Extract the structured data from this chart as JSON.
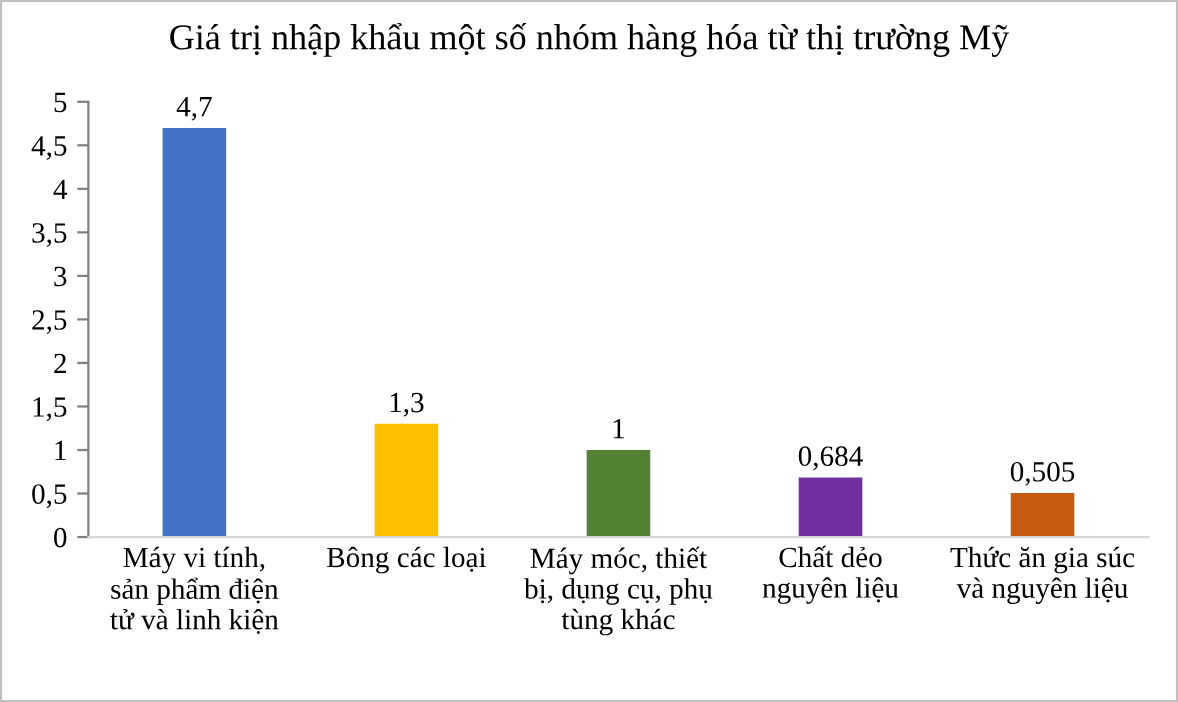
{
  "chart_data": {
    "type": "bar",
    "title": "Giá trị nhập khẩu một số nhóm hàng hóa từ thị trường Mỹ",
    "categories": [
      "Máy vi tính,\nsản phẩm điện\ntử và linh kiện",
      "Bông các loại",
      "Máy móc, thiết\nbị, dụng cụ, phụ\ntùng khác",
      "Chất dẻo\nnguyên liệu",
      "Thức ăn gia súc\nvà nguyên liệu"
    ],
    "values": [
      4.7,
      1.3,
      1,
      0.684,
      0.505
    ],
    "value_labels": [
      "4,7",
      "1,3",
      "1",
      "0,684",
      "0,505"
    ],
    "colors": [
      "#4472c4",
      "#ffc000",
      "#548235",
      "#7030a0",
      "#c55a11"
    ],
    "ylim": [
      0,
      5
    ],
    "yticks": [
      0,
      {
        "value": 0.5,
        "label": "0,5"
      },
      1,
      {
        "value": 1.5,
        "label": "1,5"
      },
      2,
      {
        "value": 2.5,
        "label": "2,5"
      },
      3,
      {
        "value": 3.5,
        "label": "3,5"
      },
      4,
      {
        "value": 4.5,
        "label": "4,5"
      },
      5
    ],
    "grid": false,
    "legend": false
  }
}
